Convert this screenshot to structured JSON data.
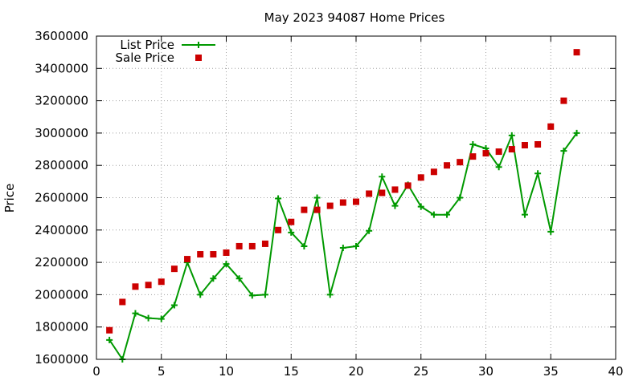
{
  "chart_data": {
    "type": "line",
    "title": "May 2023 94087 Home Prices",
    "xlabel": "",
    "ylabel": "Price",
    "xlim": [
      0,
      40
    ],
    "ylim": [
      1600000,
      3600000
    ],
    "xticks": [
      0,
      5,
      10,
      15,
      20,
      25,
      30,
      35,
      40
    ],
    "yticks": [
      1600000,
      1800000,
      2000000,
      2200000,
      2400000,
      2600000,
      2800000,
      3000000,
      3200000,
      3400000,
      3600000
    ],
    "grid": true,
    "legend_position": "top-left",
    "x": [
      1,
      2,
      3,
      4,
      5,
      6,
      7,
      8,
      9,
      10,
      11,
      12,
      13,
      14,
      15,
      16,
      17,
      18,
      19,
      20,
      21,
      22,
      23,
      24,
      25,
      26,
      27,
      28,
      29,
      30,
      31,
      32,
      33,
      34,
      35,
      36,
      37
    ],
    "series": [
      {
        "name": "List Price",
        "style": "line-plus",
        "color": "#009900",
        "values": [
          1720000,
          1600000,
          1885000,
          1855000,
          1850000,
          1935000,
          2200000,
          2000000,
          2100000,
          2190000,
          2100000,
          1995000,
          2000000,
          2595000,
          2385000,
          2300000,
          2600000,
          2000000,
          2290000,
          2300000,
          2395000,
          2730000,
          2550000,
          2680000,
          2545000,
          2495000,
          2495000,
          2600000,
          2930000,
          2905000,
          2790000,
          2985000,
          2495000,
          2750000,
          2390000,
          2890000,
          3000000
        ]
      },
      {
        "name": "Sale Price",
        "style": "square-marker",
        "color": "#cc0000",
        "values": [
          1780000,
          1955000,
          2050000,
          2060000,
          2080000,
          2160000,
          2220000,
          2250000,
          2250000,
          2260000,
          2300000,
          2300000,
          2315000,
          2400000,
          2450000,
          2525000,
          2525000,
          2550000,
          2570000,
          2575000,
          2625000,
          2630000,
          2650000,
          2675000,
          2725000,
          2760000,
          2800000,
          2820000,
          2855000,
          2875000,
          2885000,
          2900000,
          2925000,
          2930000,
          3040000,
          3200000,
          3500000
        ]
      }
    ]
  }
}
